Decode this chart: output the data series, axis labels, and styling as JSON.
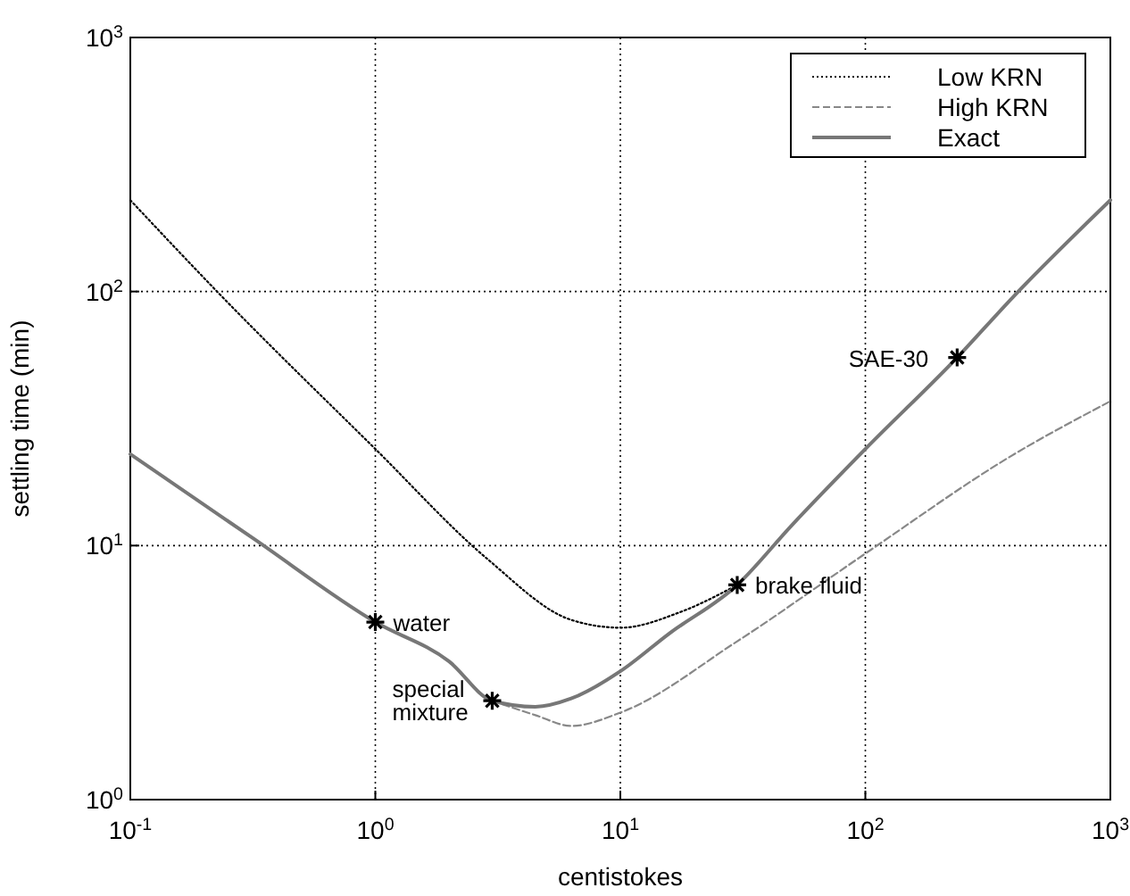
{
  "chart_data": {
    "type": "line",
    "xlabel": "centistokes",
    "ylabel": "settling time (min)",
    "log": "xy",
    "grid": true,
    "legend": "top right",
    "xlim": [
      0.1,
      1000
    ],
    "ylim": [
      1,
      1000
    ],
    "xticks": [
      {
        "value": 0.1,
        "label": "10$^{-1}$"
      },
      {
        "value": 1,
        "label": "10$^{0}$"
      },
      {
        "value": 10,
        "label": "10$^{1}$"
      },
      {
        "value": 100,
        "label": "10$^{2}$"
      },
      {
        "value": 1000,
        "label": "10$^{3}$"
      }
    ],
    "yticks": [
      {
        "value": 1,
        "label": "10$^{0}$"
      },
      {
        "value": 10,
        "label": "10$^{1}$"
      },
      {
        "value": 100,
        "label": "10$^{2}$"
      },
      {
        "value": 1000,
        "label": "10$^{3}$"
      }
    ],
    "series": [
      {
        "name": "Low KRN",
        "color": "#000000",
        "line_style": "dotted",
        "x": [
          0.1,
          0.226,
          1,
          2.85,
          6.3,
          10,
          17.8,
          30
        ],
        "values": [
          229,
          100,
          24,
          8.9,
          5.1,
          4.75,
          5.5,
          7.0
        ]
      },
      {
        "name": "High KRN",
        "color": "#888888",
        "line_style": "dashed",
        "x": [
          3,
          4.5,
          6.3,
          10,
          30,
          100,
          390,
          1000
        ],
        "values": [
          2.45,
          2.15,
          1.95,
          2.2,
          4.2,
          9.3,
          22.4,
          37
        ]
      },
      {
        "name": "Exact",
        "color": "#777777",
        "line_style": "solid",
        "x": [
          0.1,
          0.316,
          1,
          2,
          3,
          4.5,
          6.3,
          10,
          15.8,
          30,
          50,
          100,
          237,
          400,
          1000
        ],
        "values": [
          22.9,
          10.7,
          5.0,
          3.5,
          2.45,
          2.32,
          2.5,
          3.2,
          4.5,
          7.0,
          12,
          24,
          55,
          95,
          229
        ]
      },
      {
        "type": "scatter",
        "marker": "cross",
        "color": "#000000",
        "x": [
          1,
          3,
          30,
          237
        ],
        "values": [
          5.0,
          2.45,
          7.0,
          55
        ]
      }
    ],
    "annotations": [
      {
        "text": "water",
        "x": 1,
        "y": 5.0
      },
      {
        "text": "special mixture",
        "x": 3,
        "y": 2.45
      },
      {
        "text": "brake fluid",
        "x": 30,
        "y": 7.0
      },
      {
        "text": "SAE-30",
        "x": 237,
        "y": 55
      }
    ]
  }
}
